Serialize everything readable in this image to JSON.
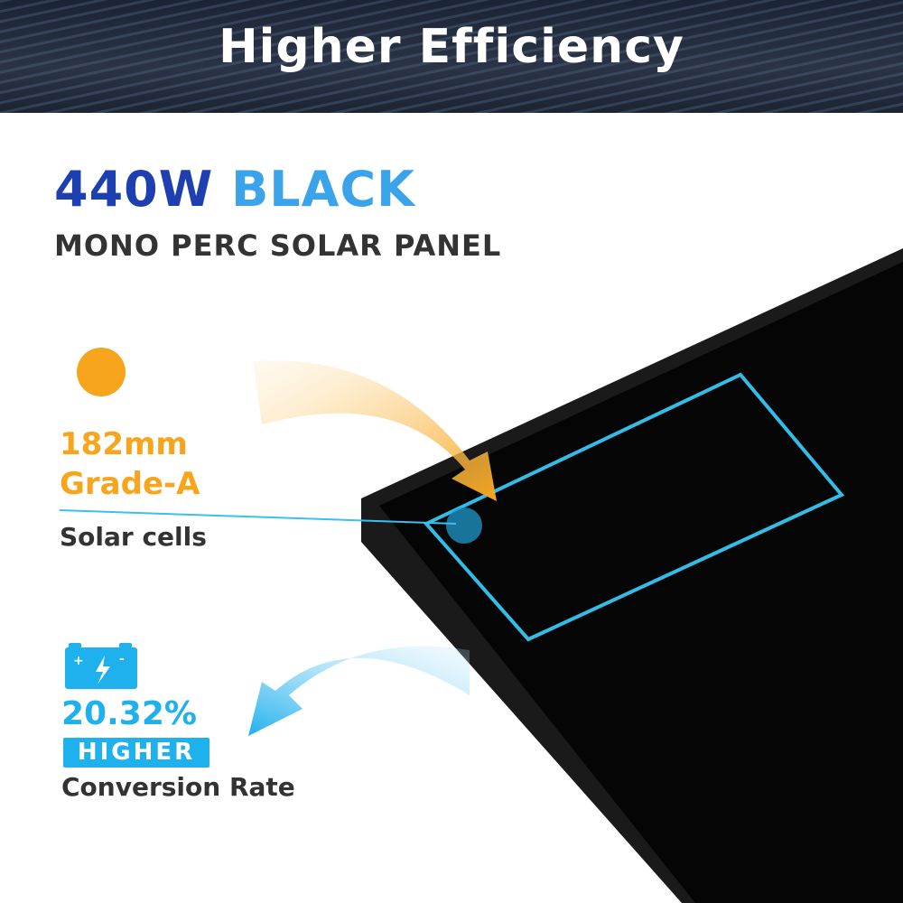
{
  "banner": {
    "title": "Higher Efficiency"
  },
  "heading": {
    "wattage": "440W",
    "color": "BLACK",
    "subtitle": "MONO PERC SOLAR PANEL"
  },
  "cells_feature": {
    "size": "182mm",
    "grade": "Grade-A",
    "label": "Solar cells",
    "icon": "sun-icon",
    "accent": "#f7a51c"
  },
  "efficiency_feature": {
    "value": "20.32%",
    "badge": "HIGHER",
    "label": "Conversion Rate",
    "icon": "battery-charge-icon",
    "accent": "#1fb0ee"
  }
}
